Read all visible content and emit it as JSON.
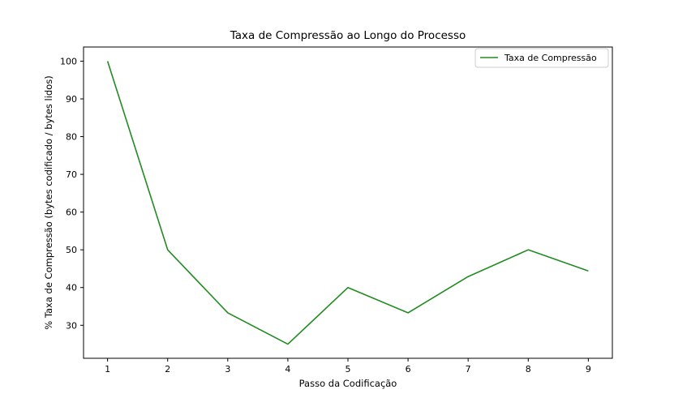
{
  "chart_data": {
    "type": "line",
    "title": "Taxa de Compressão ao Longo do Processo",
    "xlabel": "Passo da Codificação",
    "ylabel": "% Taxa de Compressão (bytes codificado / bytes lidos)",
    "x": [
      1,
      2,
      3,
      4,
      5,
      6,
      7,
      8,
      9
    ],
    "x_ticks": [
      1,
      2,
      3,
      4,
      5,
      6,
      7,
      8,
      9
    ],
    "y_ticks": [
      30,
      40,
      50,
      60,
      70,
      80,
      90,
      100
    ],
    "xlim": [
      0.6,
      9.4
    ],
    "ylim": [
      21.25,
      103.75
    ],
    "grid": false,
    "legend_position": "top-right",
    "series": [
      {
        "name": "Taxa de Compressão",
        "color": "#228B22",
        "values": [
          100,
          50,
          33.3,
          25,
          40,
          33.3,
          42.9,
          50,
          44.4
        ]
      }
    ]
  }
}
